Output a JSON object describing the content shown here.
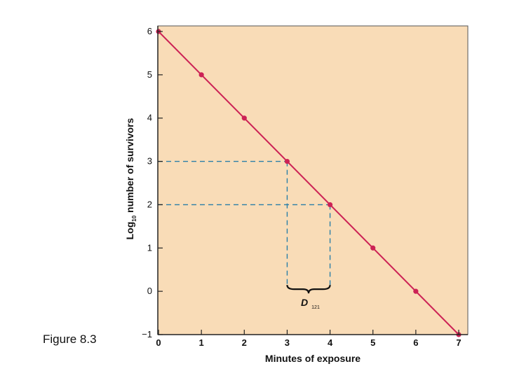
{
  "caption": "Figure 8.3",
  "chart_data": {
    "type": "line",
    "title": "",
    "xlabel": "Minutes of exposure",
    "ylabel_main": "Log",
    "ylabel_sub": "10",
    "ylabel_rest": " number of survivors",
    "xlim": [
      0,
      7
    ],
    "ylim": [
      -1,
      6
    ],
    "x_ticks": [
      0,
      1,
      2,
      3,
      4,
      5,
      6,
      7
    ],
    "y_ticks": [
      -1,
      0,
      1,
      2,
      3,
      4,
      5,
      6
    ],
    "x_tick_labels": [
      "0",
      "1",
      "2",
      "3",
      "4",
      "5",
      "6",
      "7"
    ],
    "y_tick_labels": [
      "−1",
      "0",
      "1",
      "2",
      "3",
      "4",
      "5",
      "6"
    ],
    "grid": false,
    "series": [
      {
        "x": [
          0,
          1,
          2,
          3,
          4,
          5,
          6,
          7
        ],
        "y": [
          6,
          5,
          4,
          3,
          2,
          1,
          0,
          -1
        ]
      }
    ],
    "annotation": {
      "label_main": "D",
      "label_sub": "121",
      "x_from": 3,
      "x_to": 4,
      "y_from": 3,
      "y_to": 2
    },
    "colors": {
      "background": "#f9dcb7",
      "line": "#cc2255",
      "marker": "#cc2255",
      "guide": "#2a7fa8",
      "axis": "#222222"
    }
  }
}
